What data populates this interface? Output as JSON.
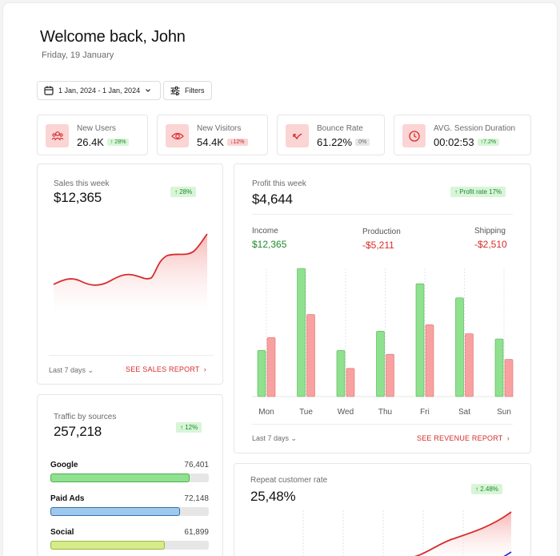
{
  "header": {
    "title": "Welcome back, John",
    "date": "Friday, 19 January"
  },
  "toolbar": {
    "date_range_label": "1 Jan, 2024 - 1 Jan, 2024",
    "filters_label": "Filters"
  },
  "stats": [
    {
      "label": "New Users",
      "value": "26.4K",
      "badge": "↑ 28%",
      "trend": "up",
      "icon": "users-icon"
    },
    {
      "label": "New Visitors",
      "value": "54.4K",
      "badge": "↓12%",
      "trend": "down",
      "icon": "eye-icon"
    },
    {
      "label": "Bounce Rate",
      "value": "61.22%",
      "badge": "0%",
      "trend": "neutral",
      "icon": "bounce-arrow-icon"
    },
    {
      "label": "AVG. Session Duration",
      "value": "00:02:53",
      "badge": "↑7.2%",
      "trend": "up",
      "icon": "clock-icon"
    }
  ],
  "sales": {
    "label": "Sales this week",
    "value": "$12,365",
    "badge": "↑ 28%",
    "period": "Last 7 days",
    "link": "SEE SALES REPORT",
    "chevron_icon": "chevron-right-icon",
    "line_color": "#d62c2c"
  },
  "profit": {
    "label": "Profit this week",
    "value": "$4,644",
    "badge": "↑ Profit rate 17%",
    "income_label": "Income",
    "income_value": "$12,365",
    "production_label": "Production",
    "production_value": "-$5,211",
    "shipping_label": "Shipping",
    "shipping_value": "-$2,510",
    "period": "Last 7 days",
    "link": "SEE REVENUE REPORT"
  },
  "traffic": {
    "label": "Traffic by sources",
    "value": "257,218",
    "badge": "↑ 12%",
    "sources": [
      {
        "name": "Google",
        "value": "76,401",
        "fraction": 0.88,
        "color": "#8fe08f",
        "border": "#4fb34f"
      },
      {
        "name": "Paid Ads",
        "value": "72,148",
        "fraction": 0.82,
        "color": "#9ec9ef",
        "border": "#3a6fa8"
      },
      {
        "name": "Social",
        "value": "61,899",
        "fraction": 0.72,
        "color": "#d6ec8a",
        "border": "#9bb83a"
      }
    ]
  },
  "repeat": {
    "label": "Repeat customer rate",
    "value": "25,48%",
    "badge": "↑ 2.48%"
  },
  "chart_data": {
    "type": "bar",
    "categories": [
      "Mon",
      "Tue",
      "Wed",
      "Thu",
      "Fri",
      "Sat",
      "Sun"
    ],
    "series": [
      {
        "name": "",
        "color": "#8fe08f",
        "values": [
          36,
          100,
          36,
          51,
          88,
          77,
          45
        ]
      },
      {
        "name": "",
        "color": "#f9a1a1",
        "values": [
          46,
          64,
          22,
          33,
          56,
          49,
          29
        ]
      }
    ],
    "ylim": [
      0,
      100
    ]
  }
}
